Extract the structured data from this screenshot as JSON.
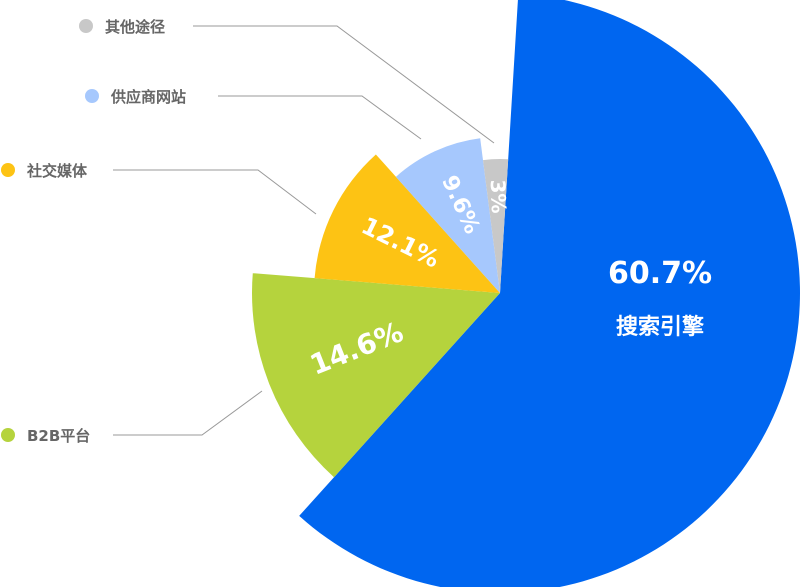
{
  "chart_data": {
    "type": "pie",
    "variant": "rose",
    "categories": [
      "搜索引擎",
      "B2B平台",
      "社交媒体",
      "供应商网站",
      "其他途径"
    ],
    "values": [
      60.7,
      14.6,
      12.1,
      9.6,
      3
    ],
    "labels": [
      "60.7%",
      "14.6%",
      "12.1%",
      "9.6%",
      "3%"
    ],
    "colors": [
      "#0066f0",
      "#b5d33d",
      "#fdc314",
      "#a6c8fd",
      "#c8c8c8"
    ],
    "legend": [
      "其他途径",
      "供应商网站",
      "社交媒体",
      "B2B平台"
    ],
    "legend_colors": [
      "#c8c8c8",
      "#a6c8fd",
      "#fdc314",
      "#b5d33d"
    ]
  }
}
